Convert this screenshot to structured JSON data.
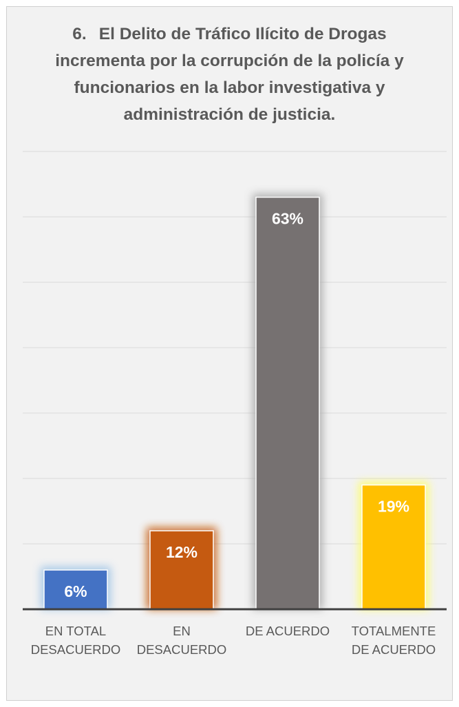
{
  "chart_data": {
    "type": "bar",
    "title_number": "6.",
    "title": "El Delito de Tráfico Ilícito de Drogas incrementa por la corrupción de la policía y funcionarios en la labor investigativa y administración de justicia.",
    "categories": [
      [
        "EN TOTAL",
        "DESACUERDO"
      ],
      [
        "EN",
        "DESACUERDO"
      ],
      [
        "DE ACUERDO"
      ],
      [
        "TOTALMENTE",
        "DE ACUERDO"
      ]
    ],
    "values": [
      6,
      12,
      63,
      19
    ],
    "value_labels": [
      "6%",
      "12%",
      "63%",
      "19%"
    ],
    "colors": [
      "#4472c4",
      "#c55a11",
      "#767171",
      "#ffc000"
    ],
    "glow_colors": [
      "#9dc3e6",
      "#c55a11",
      "#a6a6a6",
      "#ffff66"
    ],
    "ylim": [
      0,
      70
    ],
    "grid": true,
    "legend": "none",
    "xlabel": "",
    "ylabel": ""
  }
}
